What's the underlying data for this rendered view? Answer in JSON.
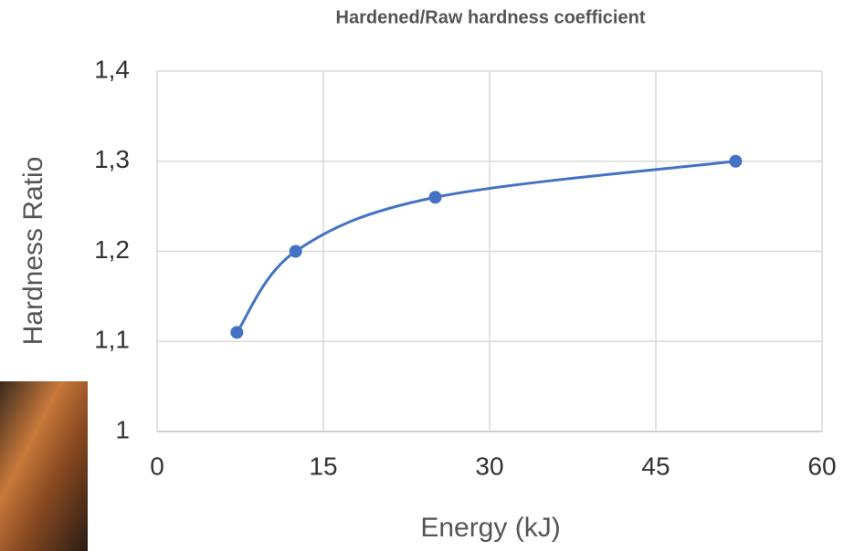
{
  "chart_data": {
    "type": "line",
    "title": "Hardened/Raw hardness coefficient",
    "x_label": "Energy (kJ)",
    "y_label": "Hardness Ratio",
    "series": [
      {
        "color": "#4472c4",
        "x": [
          7.2,
          12.5,
          25.1,
          52.2
        ],
        "values": [
          1.11,
          1.2,
          1.26,
          1.3
        ]
      }
    ],
    "xlim": [
      0,
      60
    ],
    "xticks": [
      0,
      15,
      30,
      45,
      60
    ],
    "ylim": [
      1,
      1.4
    ],
    "yticks": [
      1,
      {
        "value": 1.1,
        "label": "1,1"
      },
      {
        "value": 1.2,
        "label": "1,2"
      },
      {
        "value": 1.3,
        "label": "1,3"
      },
      {
        "value": 1.4,
        "label": "1,4"
      }
    ],
    "grid": true,
    "smooth": true
  }
}
